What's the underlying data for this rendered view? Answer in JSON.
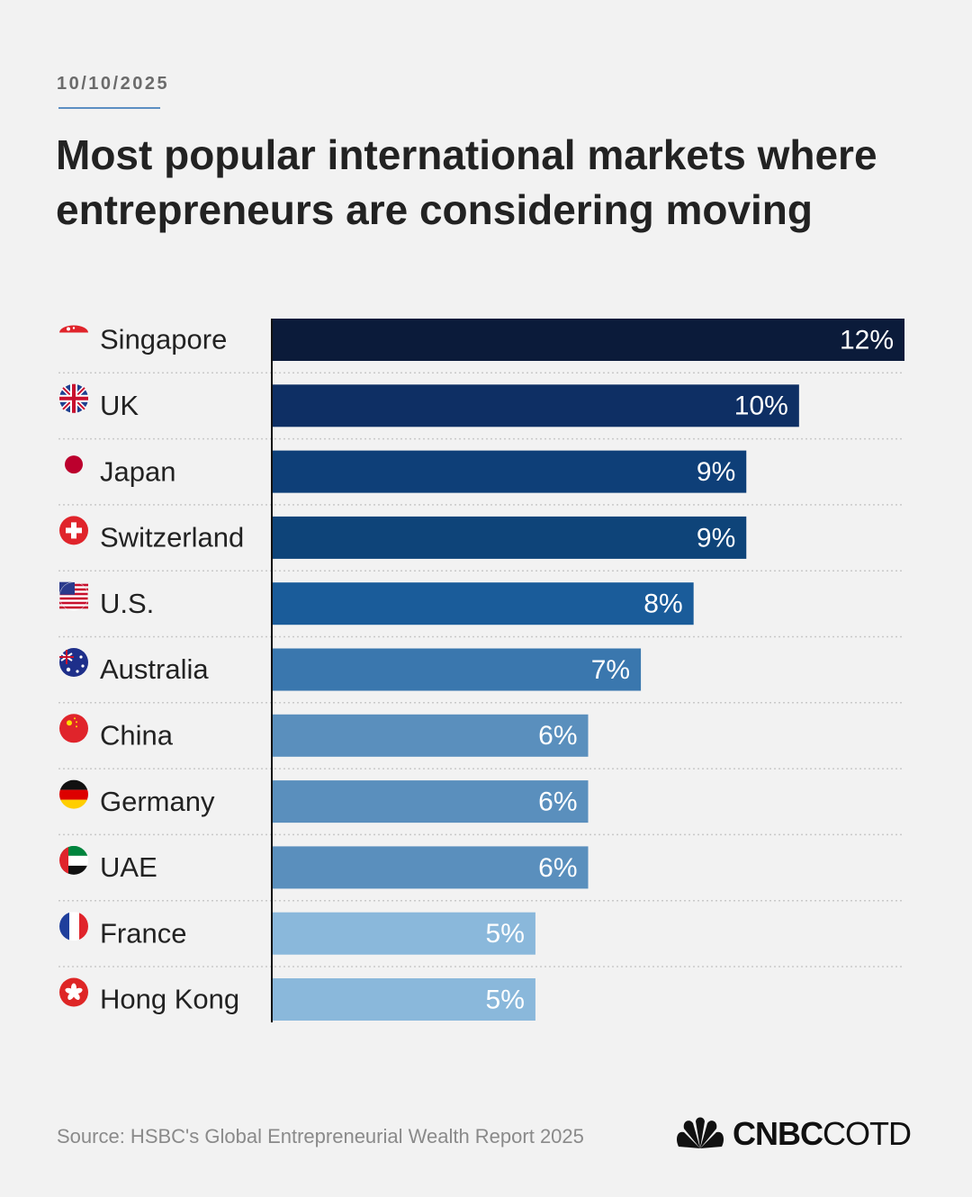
{
  "date": "10/10/2025",
  "title": "Most popular international markets where entrepreneurs are considering moving",
  "source": "Source: HSBC's Global Entrepreneurial Wealth Report 2025",
  "logo": {
    "brand": "CNBC",
    "suffix": "COTD",
    "icon": "nbc-peacock-icon"
  },
  "chart_data": {
    "type": "bar",
    "orientation": "horizontal",
    "title": "Most popular international markets where entrepreneurs are considering moving",
    "categories": [
      "Singapore",
      "UK",
      "Japan",
      "Switzerland",
      "U.S.",
      "Australia",
      "China",
      "Germany",
      "UAE",
      "France",
      "Hong Kong"
    ],
    "values": [
      12,
      10,
      9,
      9,
      8,
      7,
      6,
      6,
      6,
      5,
      5
    ],
    "labels": [
      "12%",
      "10%",
      "9%",
      "9%",
      "8%",
      "7%",
      "6%",
      "6%",
      "6%",
      "5%",
      "5%"
    ],
    "unit": "%",
    "xlim": [
      0,
      12
    ],
    "grid": false,
    "bar_colors": [
      "#0b1b3a",
      "#0e2f64",
      "#0e3f78",
      "#0e4479",
      "#1a5c9a",
      "#3a77ae",
      "#5a8fbd",
      "#5a8fbd",
      "#5a8fbd",
      "#8ab8db",
      "#8ab8db"
    ],
    "flag_icons": [
      "singapore-flag-icon",
      "uk-flag-icon",
      "japan-flag-icon",
      "switzerland-flag-icon",
      "us-flag-icon",
      "australia-flag-icon",
      "china-flag-icon",
      "germany-flag-icon",
      "uae-flag-icon",
      "france-flag-icon",
      "hong-kong-flag-icon"
    ]
  }
}
